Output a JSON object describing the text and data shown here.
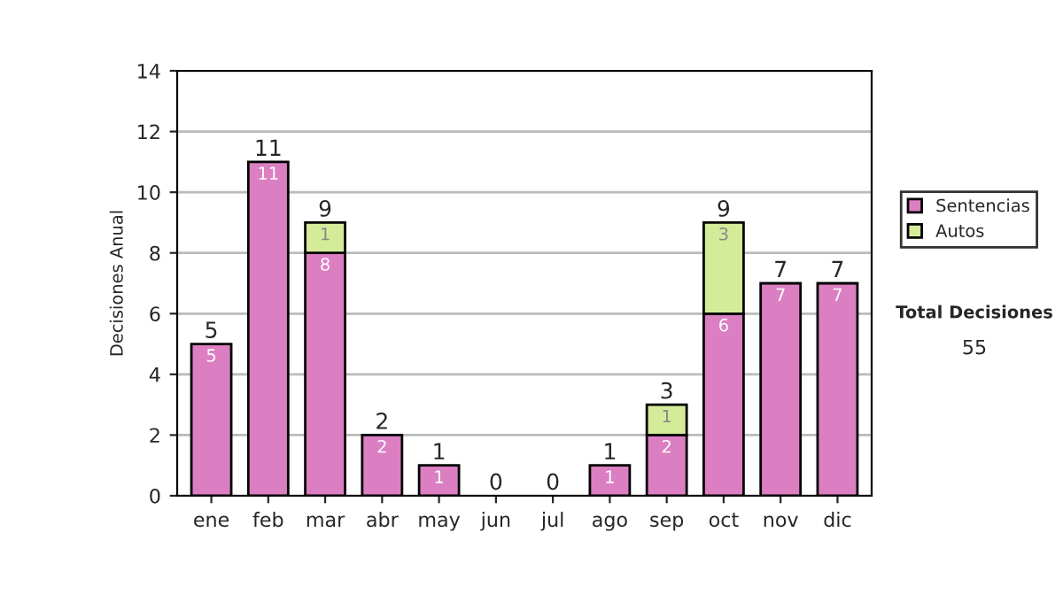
{
  "chart_data": {
    "type": "bar",
    "stacked": true,
    "ylabel": "Decisiones Anual",
    "categories": [
      "ene",
      "feb",
      "mar",
      "abr",
      "may",
      "jun",
      "jul",
      "ago",
      "sep",
      "oct",
      "nov",
      "dic"
    ],
    "series": [
      {
        "name": "Sentencias",
        "color": "#db7fc2",
        "values": [
          5,
          11,
          8,
          2,
          1,
          0,
          0,
          1,
          2,
          6,
          7,
          7
        ],
        "value_labels": [
          "5",
          "11",
          "8",
          "2",
          "1",
          null,
          null,
          "1",
          "2",
          "6",
          "7",
          "7"
        ]
      },
      {
        "name": "Autos",
        "color": "#d4eb9a",
        "values": [
          0,
          0,
          1,
          0,
          0,
          0,
          0,
          0,
          1,
          3,
          0,
          0
        ],
        "value_labels": [
          null,
          null,
          "1",
          null,
          null,
          null,
          null,
          null,
          "1",
          "3",
          null,
          null
        ]
      }
    ],
    "totals": [
      "5",
      "11",
      "9",
      "2",
      "1",
      "0",
      "0",
      "1",
      "3",
      "9",
      "7",
      "7"
    ],
    "ylim": [
      0,
      14
    ],
    "yticks": [
      0,
      2,
      4,
      6,
      8,
      10,
      12,
      14
    ],
    "grid": "y",
    "legend": "right",
    "annotations": [
      "Total Decisiones",
      "55"
    ]
  }
}
